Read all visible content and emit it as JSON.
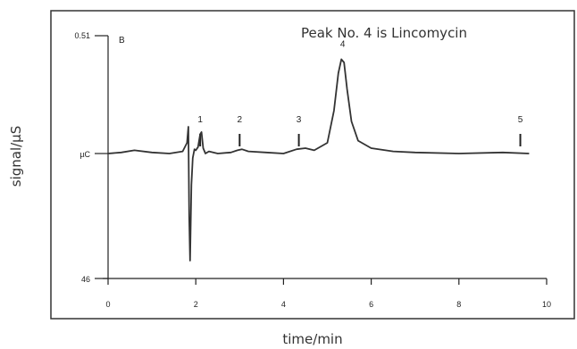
{
  "chart_data": {
    "type": "line",
    "title": "Peak No. 4 is Lincomycin",
    "panel_label": "B",
    "xlabel": "time/min",
    "ylabel": "signal/µS",
    "xlim": [
      0,
      10
    ],
    "x_ticks": [
      0,
      2,
      4,
      6,
      8,
      10
    ],
    "y_tick_labels": {
      "top": "0.51",
      "middle": "µC",
      "bottom": "46"
    },
    "grid": false,
    "baseline": 0,
    "ylim": [
      -1.25,
      1.1
    ],
    "x": [
      0,
      0.3,
      0.6,
      1.0,
      1.4,
      1.7,
      1.8,
      1.83,
      1.85,
      1.87,
      1.9,
      1.93,
      1.97,
      2.0,
      2.05,
      2.1,
      2.13,
      2.17,
      2.22,
      2.3,
      2.5,
      2.8,
      2.95,
      3.05,
      3.2,
      3.6,
      4.0,
      4.3,
      4.5,
      4.7,
      5.0,
      5.15,
      5.25,
      5.32,
      5.38,
      5.45,
      5.55,
      5.7,
      6.0,
      6.5,
      7.0,
      8.0,
      9.0,
      9.6
    ],
    "values": [
      0,
      0.01,
      0.03,
      0.01,
      0.0,
      0.02,
      0.1,
      0.25,
      -0.7,
      -1.2,
      -0.35,
      -0.05,
      0.04,
      0.03,
      0.06,
      0.18,
      0.2,
      0.05,
      0.0,
      0.02,
      0.0,
      0.01,
      0.03,
      0.04,
      0.02,
      0.01,
      0.0,
      0.04,
      0.05,
      0.03,
      0.1,
      0.4,
      0.75,
      0.88,
      0.85,
      0.6,
      0.3,
      0.12,
      0.05,
      0.02,
      0.01,
      0.0,
      0.01,
      0.0
    ],
    "peaks": [
      {
        "label": "1",
        "x": 2.1
      },
      {
        "label": "2",
        "x": 3.0
      },
      {
        "label": "3",
        "x": 4.35
      },
      {
        "label": "4",
        "x": 5.35
      },
      {
        "label": "5",
        "x": 9.4
      }
    ],
    "line_color": "#333333"
  }
}
